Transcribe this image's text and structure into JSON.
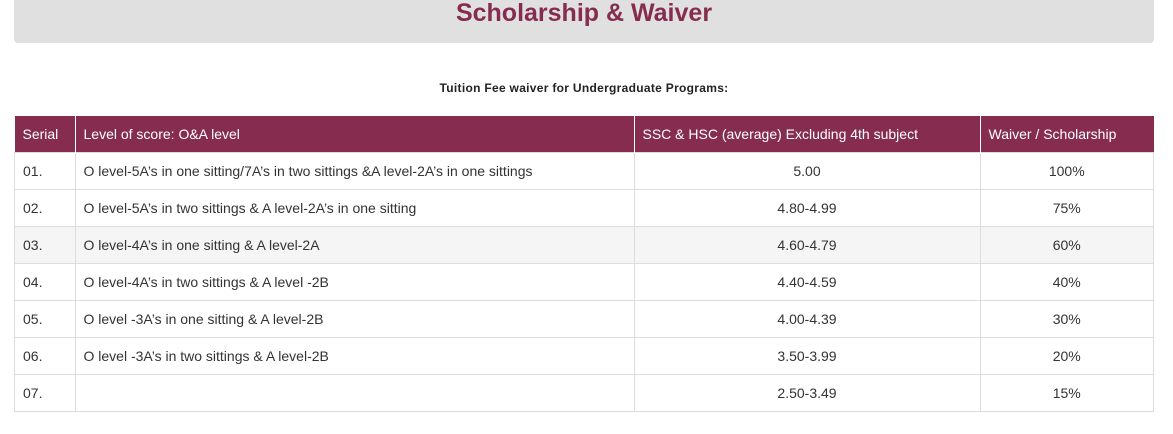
{
  "page": {
    "title": "Scholarship & Waiver",
    "subtitle": "Tuition Fee waiver for Undergraduate Programs:"
  },
  "table": {
    "headers": {
      "serial": "Serial",
      "level": "Level of score: O&A level",
      "ssc": "SSC & HSC (average) Excluding 4th subject",
      "waiver": "Waiver / Scholarship"
    },
    "rows": [
      {
        "serial": "01.",
        "level": "O level-5A’s in one sitting/7A’s in two sittings &A level-2A’s in one sittings",
        "ssc": "5.00",
        "waiver": "100%"
      },
      {
        "serial": "02.",
        "level": "O level-5A’s in two sittings & A level-2A’s in one sitting",
        "ssc": "4.80-4.99",
        "waiver": "75%"
      },
      {
        "serial": "03.",
        "level": "O level-4A’s in one sitting & A level-2A",
        "ssc": "4.60-4.79",
        "waiver": "60%"
      },
      {
        "serial": "04.",
        "level": "O level-4A’s in two sittings & A level -2B",
        "ssc": "4.40-4.59",
        "waiver": "40%"
      },
      {
        "serial": "05.",
        "level": "O level -3A’s in one sitting & A level-2B",
        "ssc": "4.00-4.39",
        "waiver": "30%"
      },
      {
        "serial": "06.",
        "level": "O level -3A’s in two sittings & A level-2B",
        "ssc": "3.50-3.99",
        "waiver": "20%"
      },
      {
        "serial": "07.",
        "level": "",
        "ssc": "2.50-3.49",
        "waiver": "15%"
      }
    ]
  },
  "colors": {
    "accent": "#862d4f",
    "title_bar_bg": "#e0e0e0",
    "stripe_bg": "#f5f5f5"
  }
}
